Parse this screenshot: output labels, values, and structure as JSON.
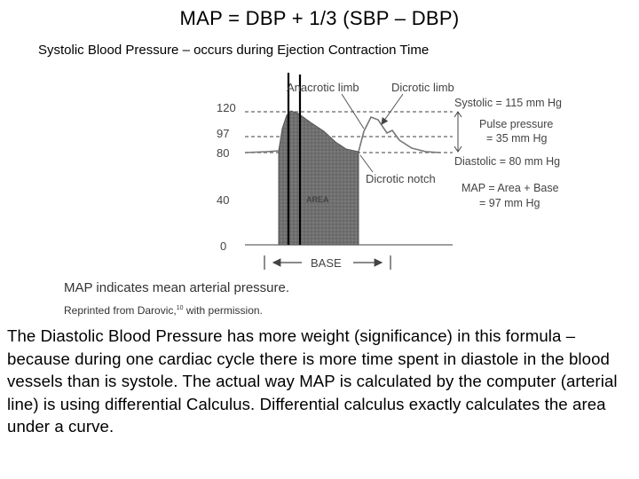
{
  "title": "MAP = DBP + 1/3 (SBP – DBP)",
  "subtitle": "Systolic  Blood Pressure – occurs during Ejection Contraction Time",
  "figure": {
    "y_ticks": [
      "120",
      "97",
      "80",
      "40",
      "0"
    ],
    "labels": {
      "anacrotic": "Anacrotic limb",
      "dicrotic_limb": "Dicrotic limb",
      "systolic": "Systolic = 115 mm Hg",
      "pulse_pressure_1": "Pulse pressure",
      "pulse_pressure_2": "= 35 mm Hg",
      "diastolic": "Diastolic = 80 mm Hg",
      "dicrotic_notch": "Dicrotic notch",
      "map_1": "MAP = Area  +  Base",
      "map_2": "= 97 mm Hg",
      "area": "AREA",
      "base": "BASE"
    }
  },
  "caption": {
    "main": "MAP indicates mean arterial pressure.",
    "sub_before": "Reprinted from Darovic,",
    "sub_sup": "10",
    "sub_after": " with permission."
  },
  "body": "The Diastolic Blood Pressure has more weight (significance) in this formula – because during one cardiac cycle there is more time spent in diastole in the blood vessels than is systole.  The actual way MAP is calculated by the computer (arterial line) is using differential Calculus.  Differential calculus exactly calculates the area under a curve."
}
